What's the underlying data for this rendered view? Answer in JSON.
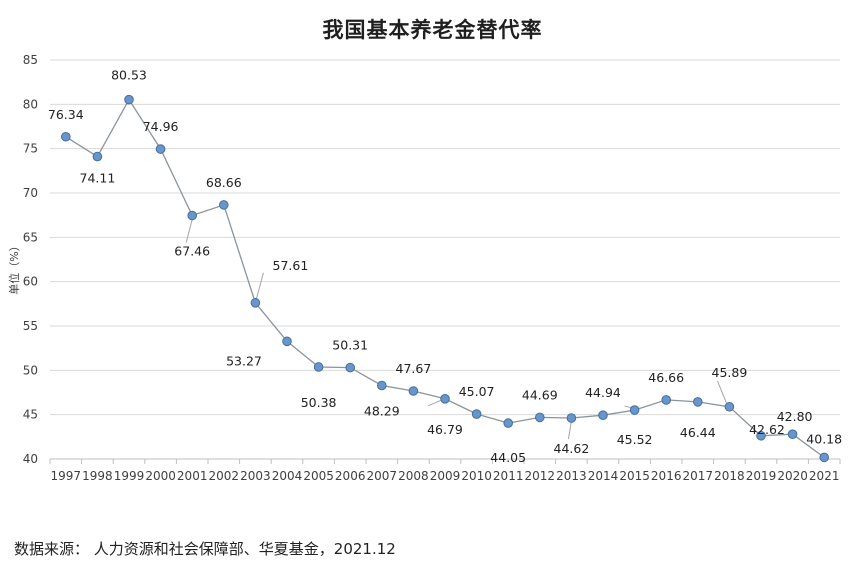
{
  "chart_data": {
    "type": "line",
    "title": "我国基本养老金替代率",
    "ylabel": "单位（%）",
    "xlabel": "",
    "ylim": [
      40,
      85
    ],
    "yticks": [
      40,
      45,
      50,
      55,
      60,
      65,
      70,
      75,
      80,
      85
    ],
    "grid": true,
    "legend": "none",
    "x": [
      "1997",
      "1998",
      "1999",
      "2000",
      "2001",
      "2002",
      "2003",
      "2004",
      "2005",
      "2006",
      "2007",
      "2008",
      "2009",
      "2010",
      "2011",
      "2012",
      "2013",
      "2014",
      "2015",
      "2016",
      "2017",
      "2018",
      "2019",
      "2020",
      "2021"
    ],
    "series": [
      {
        "values": [
          76.34,
          74.11,
          80.53,
          74.96,
          67.46,
          68.66,
          57.61,
          53.27,
          50.38,
          50.31,
          48.29,
          47.67,
          46.79,
          45.07,
          44.05,
          44.69,
          44.62,
          44.94,
          45.52,
          46.66,
          46.44,
          45.89,
          42.62,
          42.8,
          40.18
        ],
        "labels": [
          "76.34",
          "74.11",
          "80.53",
          "74.96",
          "67.46",
          "68.66",
          "57.61",
          "53.27",
          "50.38",
          "50.31",
          "48.29",
          "47.67",
          "46.79",
          "45.07",
          "44.05",
          "44.69",
          "44.62",
          "44.94",
          "45.52",
          "46.66",
          "46.44",
          "45.89",
          "42.62",
          "42.80",
          "40.18"
        ],
        "color": "#6a95c9",
        "line_color": "#8a949c"
      }
    ]
  },
  "source": "数据来源：  人力资源和社会保障部、华夏基金，2021.12"
}
